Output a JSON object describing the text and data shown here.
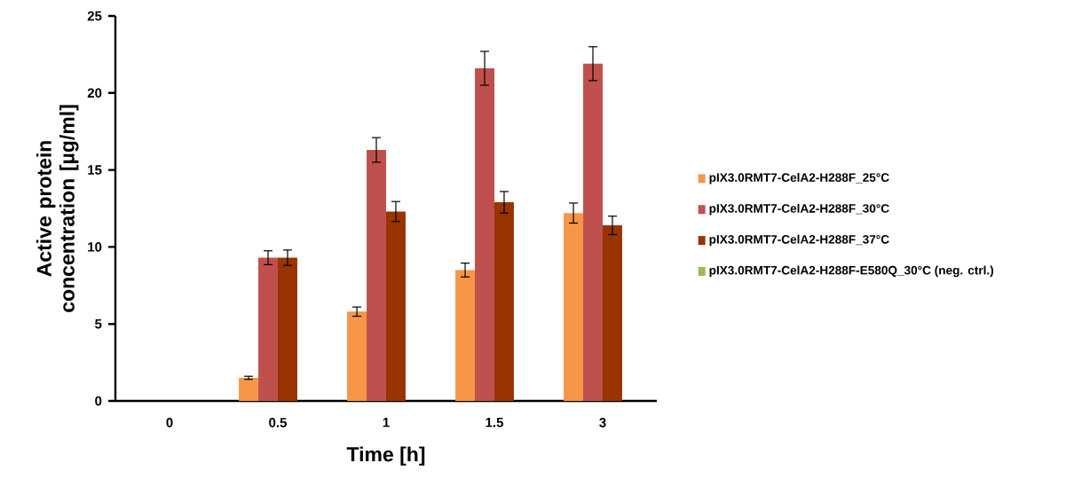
{
  "chart_data": {
    "type": "bar",
    "xlabel": "Time [h]",
    "ylabel": "Active protein concentration [µg/ml]",
    "categories": [
      "0",
      "0.5",
      "1",
      "1.5",
      "3"
    ],
    "series": [
      {
        "name": "pIX3.0RMT7-CelA2-H288F_25°C",
        "color": "#f79646",
        "values": [
          0,
          1.5,
          5.8,
          8.5,
          12.2
        ],
        "errors": [
          null,
          0.1,
          0.3,
          0.45,
          0.65
        ]
      },
      {
        "name": "pIX3.0RMT7-CelA2-H288F_30°C",
        "color": "#c0504d",
        "values": [
          0,
          9.3,
          16.3,
          21.6,
          21.9
        ],
        "errors": [
          null,
          0.45,
          0.8,
          1.1,
          1.1
        ]
      },
      {
        "name": "pIX3.0RMT7-CelA2-H288F_37°C",
        "color": "#993300",
        "values": [
          0,
          9.3,
          12.3,
          12.9,
          11.4
        ],
        "errors": [
          null,
          0.5,
          0.65,
          0.7,
          0.6
        ]
      },
      {
        "name": "pIX3.0RMT7-CelA2-H288F-E580Q_30°C (neg. ctrl.)",
        "color": "#9bbb59",
        "values": [
          0,
          0,
          0,
          0,
          0
        ]
      }
    ],
    "ylim": [
      0,
      25
    ],
    "yticks": [
      0,
      5,
      10,
      15,
      20,
      25
    ],
    "legend": "right",
    "grid": false
  }
}
